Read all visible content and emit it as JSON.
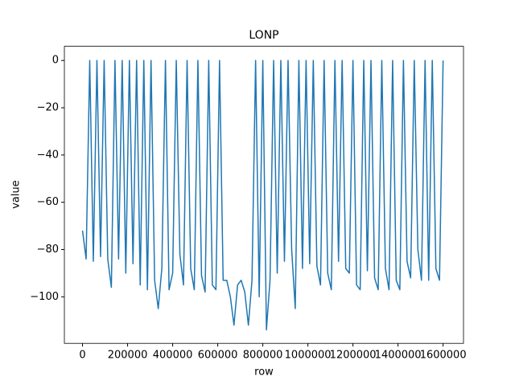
{
  "chart_data": {
    "type": "line",
    "title": "LONP",
    "x_label": "row",
    "y_label": "value",
    "x": [
      0,
      16000,
      32000,
      48000,
      64000,
      80000,
      96000,
      112000,
      128000,
      144000,
      160000,
      176000,
      192000,
      208000,
      224000,
      240000,
      256000,
      272000,
      288000,
      304000,
      320000,
      336000,
      352000,
      368000,
      384000,
      400000,
      416000,
      432000,
      448000,
      464000,
      480000,
      496000,
      512000,
      528000,
      544000,
      560000,
      576000,
      592000,
      608000,
      624000,
      640000,
      656000,
      672000,
      688000,
      704000,
      720000,
      736000,
      752000,
      768000,
      784000,
      800000,
      816000,
      832000,
      848000,
      864000,
      880000,
      896000,
      912000,
      928000,
      944000,
      960000,
      976000,
      992000,
      1008000,
      1024000,
      1040000,
      1056000,
      1072000,
      1088000,
      1104000,
      1120000,
      1136000,
      1152000,
      1168000,
      1184000,
      1200000,
      1216000,
      1232000,
      1248000,
      1264000,
      1280000,
      1296000,
      1312000,
      1328000,
      1344000,
      1360000,
      1376000,
      1392000,
      1408000,
      1424000,
      1440000,
      1456000,
      1472000,
      1488000,
      1504000,
      1520000,
      1536000,
      1552000,
      1568000,
      1584000,
      1600000
    ],
    "series": [
      {
        "name": "value",
        "color": "#1f77b4",
        "values": [
          -72,
          -84,
          0,
          -85,
          0,
          -83,
          0,
          -84,
          -96,
          0,
          -84,
          0,
          -90,
          0,
          -86,
          0,
          -95,
          0,
          -97,
          0,
          -93,
          -105,
          -88,
          0,
          -97,
          -90,
          0,
          -82,
          -95,
          0,
          -88,
          -97,
          0,
          -91,
          -98,
          0,
          -95,
          -97,
          0,
          -93,
          -93,
          -100,
          -112,
          -95,
          -93,
          -98,
          -112,
          -93,
          0,
          -100,
          0,
          -114,
          -93,
          0,
          -90,
          0,
          -85,
          0,
          -80,
          -105,
          0,
          -88,
          0,
          -86,
          0,
          -87,
          -95,
          0,
          -90,
          -97,
          0,
          -85,
          0,
          -88,
          -90,
          0,
          -95,
          -97,
          0,
          -89,
          0,
          -92,
          -97,
          0,
          -88,
          -97,
          0,
          -93,
          -97,
          0,
          -85,
          -92,
          0,
          -80,
          -93,
          0,
          -93,
          0,
          -88,
          -93,
          0
        ]
      }
    ],
    "xlim": [
      -80500,
      1690500
    ],
    "ylim": [
      -119.7,
      6.0
    ],
    "xticks": [
      0,
      200000,
      400000,
      600000,
      800000,
      1000000,
      1200000,
      1400000,
      1600000
    ],
    "yticks": [
      {
        "value": -100,
        "label": "−100"
      },
      {
        "value": -80,
        "label": "−80"
      },
      {
        "value": -60,
        "label": "−60"
      },
      {
        "value": -40,
        "label": "−40"
      },
      {
        "value": -20,
        "label": "−20"
      },
      0
    ]
  }
}
